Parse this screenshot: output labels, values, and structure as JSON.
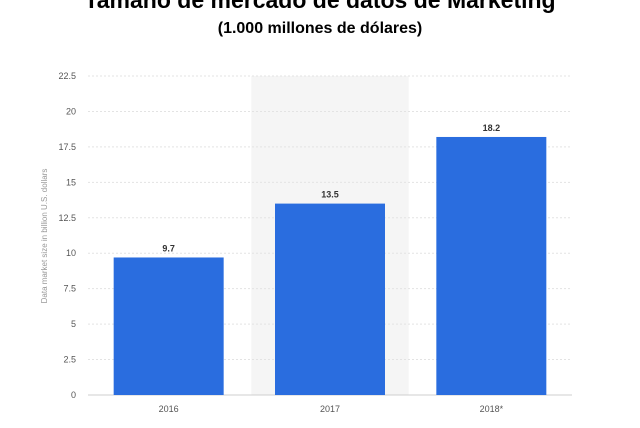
{
  "header": {
    "title": "Tamaño de mercado de datos de Marketing",
    "subtitle": "(1.000 millones de dólares)"
  },
  "chart_data": {
    "type": "bar",
    "categories": [
      "2016",
      "2017",
      "2018*"
    ],
    "values": [
      9.7,
      13.5,
      18.2
    ],
    "data_labels": [
      "9.7",
      "13.5",
      "18.2"
    ],
    "ylabel": "Data market size in billion U.S. dollars",
    "ylim": [
      0,
      22.5
    ],
    "yticks": [
      "0",
      "2.5",
      "5",
      "7.5",
      "10",
      "12.5",
      "15",
      "17.5",
      "20",
      "22.5"
    ],
    "grid": true,
    "highlighted_category": "2017",
    "bar_color": "#2a6ddf",
    "highlight_color": "#f5f5f5"
  }
}
